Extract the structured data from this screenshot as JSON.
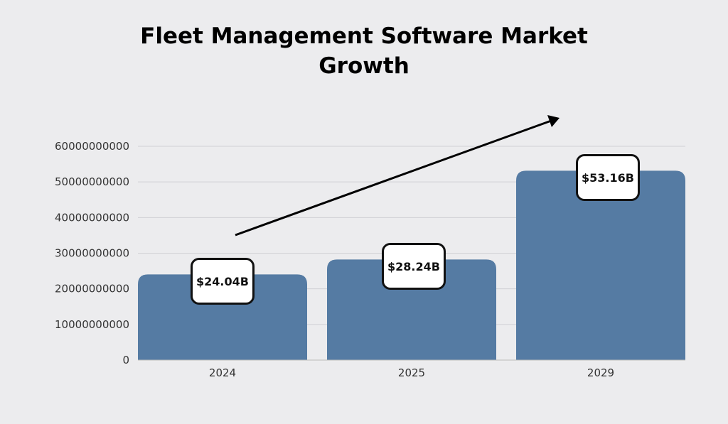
{
  "chart_data": {
    "type": "bar",
    "title_lines": [
      "Fleet Management Software Market",
      "Growth"
    ],
    "categories": [
      "2024",
      "2025",
      "2029"
    ],
    "values": [
      24040000000,
      28240000000,
      53160000000
    ],
    "data_labels": [
      "$24.04B",
      "$28.24B",
      "$53.16B"
    ],
    "xlabel": "",
    "ylabel": "",
    "ylim": [
      0,
      60000000000
    ],
    "yticks": [
      "0",
      "10000000000",
      "20000000000",
      "30000000000",
      "40000000000",
      "50000000000",
      "60000000000"
    ],
    "grid": true,
    "annotation": "upward trend arrow",
    "colors": {
      "bar": "#557ba3",
      "background": "#ececee",
      "grid": "#d0d0d4"
    }
  }
}
